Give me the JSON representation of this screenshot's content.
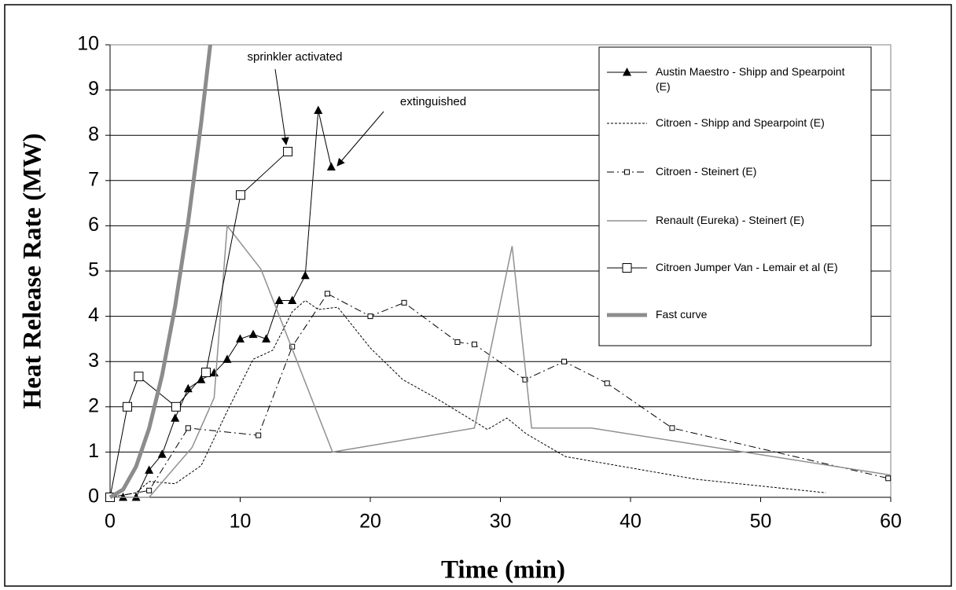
{
  "chart_data": {
    "type": "line",
    "x_label": "Time (min)",
    "y_label": "Heat Release Rate (MW)",
    "xlim": [
      0,
      60
    ],
    "xticks": [
      0,
      10,
      20,
      30,
      40,
      50,
      60
    ],
    "ylim": [
      0,
      10
    ],
    "yticks": [
      0,
      1,
      2,
      3,
      4,
      5,
      6,
      7,
      8,
      9,
      10
    ],
    "grid": true,
    "legend": "upper right",
    "annotations": [
      {
        "text": "sprinkler activated"
      },
      {
        "text": "extinguished"
      }
    ],
    "series": [
      {
        "name": "Austin Maestro - Shipp and Spearpoint (E)",
        "color": "#000000",
        "line_style": "solid",
        "line_width": 1,
        "marker": "triangle",
        "x": [
          0,
          1,
          2,
          3,
          4,
          5,
          6,
          7,
          8,
          9,
          10,
          11,
          12,
          13,
          14,
          15,
          16,
          17
        ],
        "values": [
          0,
          0,
          0,
          0.6,
          0.95,
          1.75,
          2.4,
          2.6,
          2.75,
          3.05,
          3.5,
          3.6,
          3.5,
          4.35,
          4.35,
          4.9,
          8.55,
          7.3
        ]
      },
      {
        "name": "Citroen - Shipp and Spearpoint (E)",
        "color": "#000000",
        "line_style": "dotted",
        "line_width": 1,
        "marker": "none",
        "x": [
          0,
          2,
          3,
          5,
          7,
          9,
          11,
          12.5,
          14,
          15,
          16,
          17.5,
          20,
          22.5,
          25,
          29,
          30.5,
          32,
          35,
          40,
          45,
          50,
          55
        ],
        "values": [
          0,
          0.1,
          0.35,
          0.3,
          0.7,
          1.9,
          3.05,
          3.25,
          4.1,
          4.35,
          4.15,
          4.2,
          3.3,
          2.6,
          2.2,
          1.5,
          1.75,
          1.4,
          0.9,
          0.65,
          0.4,
          0.25,
          0.1
        ]
      },
      {
        "name": "Citroen - Steinert (E)",
        "color": "#000000",
        "line_style": "dashdot",
        "line_width": 1,
        "marker": "small-square",
        "x": [
          0,
          3,
          6,
          11.4,
          14,
          16.7,
          20,
          22.6,
          26.7,
          28,
          31.9,
          34.9,
          38.2,
          43.2,
          59.8
        ],
        "values": [
          0,
          0.15,
          1.53,
          1.37,
          3.33,
          4.5,
          4.0,
          4.3,
          3.43,
          3.38,
          2.6,
          3.0,
          2.52,
          1.53,
          0.42
        ]
      },
      {
        "name": "Renault (Eureka) - Steinert (E)",
        "color": "#909090",
        "line_style": "solid",
        "line_width": 1.5,
        "marker": "none",
        "x": [
          0,
          3,
          6.3,
          8,
          9,
          11.6,
          17.1,
          28,
          30.9,
          32.4,
          37,
          60
        ],
        "values": [
          0,
          0,
          1.1,
          2.2,
          6.0,
          5.04,
          1.0,
          1.53,
          5.55,
          1.53,
          1.53,
          0.49
        ]
      },
      {
        "name": "Citroen Jumper Van - Lemair et al (E)",
        "color": "#000000",
        "line_style": "solid",
        "line_width": 1,
        "marker": "square",
        "x": [
          0,
          1.33,
          2.2,
          5.07,
          7.37,
          10.03,
          13.66
        ],
        "values": [
          0,
          2.0,
          2.67,
          2.0,
          2.76,
          6.68,
          7.64
        ]
      },
      {
        "name": "Fast curve",
        "color": "#8c8c8c",
        "line_style": "solid",
        "line_width": 5,
        "marker": "none",
        "x": [
          0,
          1,
          2,
          3,
          4,
          5,
          6,
          7,
          7.7
        ],
        "values": [
          0,
          0.17,
          0.68,
          1.52,
          2.7,
          4.22,
          6.08,
          8.27,
          10
        ]
      }
    ]
  }
}
